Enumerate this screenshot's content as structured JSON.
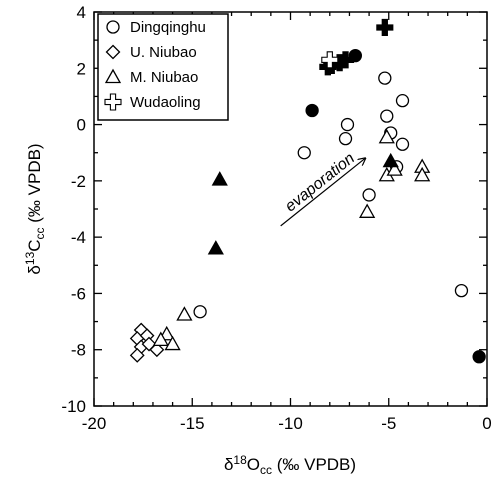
{
  "chart_data": {
    "type": "scatter",
    "xlim": [
      -20,
      0
    ],
    "ylim": [
      -10,
      4
    ],
    "xticks": [
      -20,
      -15,
      -10,
      -5,
      0
    ],
    "yticks": [
      -10,
      -8,
      -6,
      -4,
      -2,
      0,
      2,
      4
    ],
    "xlabel": {
      "pre": "δ",
      "sup": "18",
      "main": "O",
      "sub": "cc",
      "post": " (‰ VPDB)"
    },
    "ylabel": {
      "pre": "δ",
      "sup": "13",
      "main": "C",
      "sub": "cc",
      "post": " (‰ VPDB)"
    },
    "grid": false,
    "legend_position": "top-left",
    "legend": [
      {
        "label": "Dingqinghu",
        "marker": "circle"
      },
      {
        "label": "U. Niubao",
        "marker": "diamond"
      },
      {
        "label": "M. Niubao",
        "marker": "triangle"
      },
      {
        "label": "Wudaoling",
        "marker": "cross"
      }
    ],
    "series": [
      {
        "name": "Dingqinghu",
        "marker": "circle",
        "points": [
          {
            "x": -9.3,
            "y": -1.0,
            "filled": false
          },
          {
            "x": -7.2,
            "y": -0.5,
            "filled": false
          },
          {
            "x": -7.1,
            "y": 0.0,
            "filled": false
          },
          {
            "x": -5.2,
            "y": 1.65,
            "filled": false
          },
          {
            "x": -5.1,
            "y": 0.3,
            "filled": false
          },
          {
            "x": -4.9,
            "y": -0.3,
            "filled": false
          },
          {
            "x": -4.3,
            "y": 0.85,
            "filled": false
          },
          {
            "x": -4.3,
            "y": -0.7,
            "filled": false
          },
          {
            "x": -4.6,
            "y": -1.5,
            "filled": false
          },
          {
            "x": -6.0,
            "y": -2.5,
            "filled": false
          },
          {
            "x": -14.6,
            "y": -6.65,
            "filled": false
          },
          {
            "x": -1.3,
            "y": -5.9,
            "filled": false
          },
          {
            "x": -6.7,
            "y": 2.45,
            "filled": true
          },
          {
            "x": -8.9,
            "y": 0.5,
            "filled": true
          },
          {
            "x": -0.4,
            "y": -8.25,
            "filled": true
          }
        ]
      },
      {
        "name": "U. Niubao",
        "marker": "diamond",
        "points": [
          {
            "x": -17.6,
            "y": -7.3,
            "filled": false
          },
          {
            "x": -17.8,
            "y": -7.6,
            "filled": false
          },
          {
            "x": -17.3,
            "y": -7.5,
            "filled": false
          },
          {
            "x": -17.6,
            "y": -7.9,
            "filled": false
          },
          {
            "x": -17.2,
            "y": -7.8,
            "filled": false
          },
          {
            "x": -17.8,
            "y": -8.2,
            "filled": false
          },
          {
            "x": -16.8,
            "y": -8.0,
            "filled": false
          }
        ]
      },
      {
        "name": "M. Niubao",
        "marker": "triangle",
        "points": [
          {
            "x": -15.4,
            "y": -6.75,
            "filled": false
          },
          {
            "x": -16.3,
            "y": -7.45,
            "filled": false
          },
          {
            "x": -16.6,
            "y": -7.65,
            "filled": false
          },
          {
            "x": -16.0,
            "y": -7.8,
            "filled": false
          },
          {
            "x": -5.1,
            "y": -0.45,
            "filled": false
          },
          {
            "x": -5.1,
            "y": -1.8,
            "filled": false
          },
          {
            "x": -4.7,
            "y": -1.6,
            "filled": false
          },
          {
            "x": -3.3,
            "y": -1.5,
            "filled": false
          },
          {
            "x": -3.3,
            "y": -1.8,
            "filled": false
          },
          {
            "x": -6.1,
            "y": -3.1,
            "filled": false
          },
          {
            "x": -13.6,
            "y": -1.95,
            "filled": true
          },
          {
            "x": -13.8,
            "y": -4.4,
            "filled": true
          },
          {
            "x": -4.9,
            "y": -1.3,
            "filled": true
          }
        ]
      },
      {
        "name": "Wudaoling",
        "marker": "cross",
        "points": [
          {
            "x": -5.2,
            "y": 3.45,
            "filled": true
          },
          {
            "x": -7.2,
            "y": 2.3,
            "filled": true
          },
          {
            "x": -7.5,
            "y": 2.2,
            "filled": true
          },
          {
            "x": -7.9,
            "y": 2.1,
            "filled": true
          },
          {
            "x": -8.1,
            "y": 2.05,
            "filled": true
          },
          {
            "x": -8.0,
            "y": 2.3,
            "filled": false
          }
        ]
      }
    ],
    "annotations": [
      {
        "text": "evaporation",
        "arrow_from": {
          "x": -10.5,
          "y": -3.6
        },
        "arrow_to": {
          "x": -6.2,
          "y": -1.2
        }
      }
    ]
  }
}
